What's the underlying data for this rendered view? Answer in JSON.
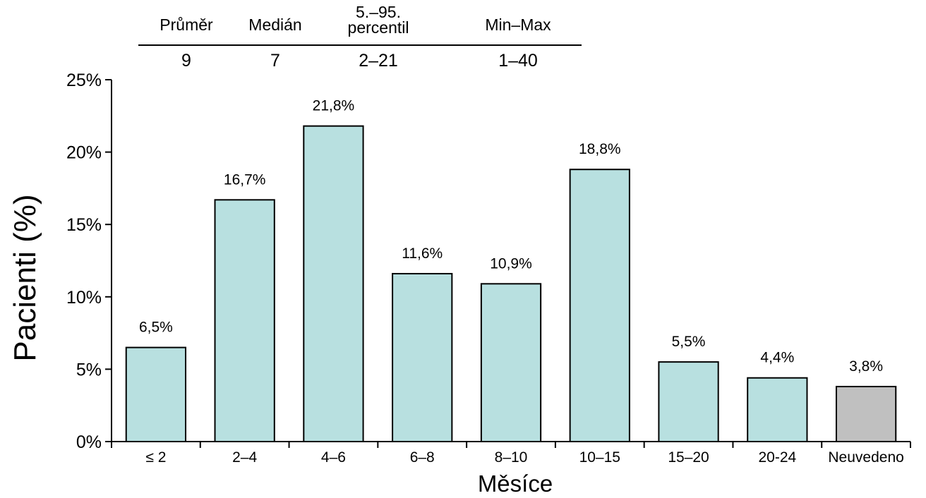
{
  "summary_table": {
    "headers": [
      "Průměr",
      "Medián",
      "5.–95.\npercentil",
      "Min–Max"
    ],
    "values": [
      "9",
      "7",
      "2–21",
      "1–40"
    ]
  },
  "chart_data": {
    "type": "bar",
    "title": "",
    "xlabel": "Měsíce",
    "ylabel": "Pacienti (%)",
    "categories": [
      "≤ 2",
      "2–4",
      "4–6",
      "6–8",
      "8–10",
      "10–15",
      "15–20",
      "20-24",
      "Neuvedeno"
    ],
    "values": [
      6.5,
      16.7,
      21.8,
      11.6,
      10.9,
      18.8,
      5.5,
      4.4,
      3.8
    ],
    "value_labels": [
      "6,5%",
      "16,7%",
      "21,8%",
      "11,6%",
      "10,9%",
      "18,8%",
      "5,5%",
      "4,4%",
      "3,8%"
    ],
    "bar_colors": [
      "#b8e0e0",
      "#b8e0e0",
      "#b8e0e0",
      "#b8e0e0",
      "#b8e0e0",
      "#b8e0e0",
      "#b8e0e0",
      "#b8e0e0",
      "#c0c0c0"
    ],
    "ylim": [
      0,
      25
    ],
    "yticks": [
      0,
      5,
      10,
      15,
      20,
      25
    ],
    "ytick_labels": [
      "0%",
      "5%",
      "10%",
      "15%",
      "20%",
      "25%"
    ],
    "grid": false,
    "legend": "none"
  }
}
